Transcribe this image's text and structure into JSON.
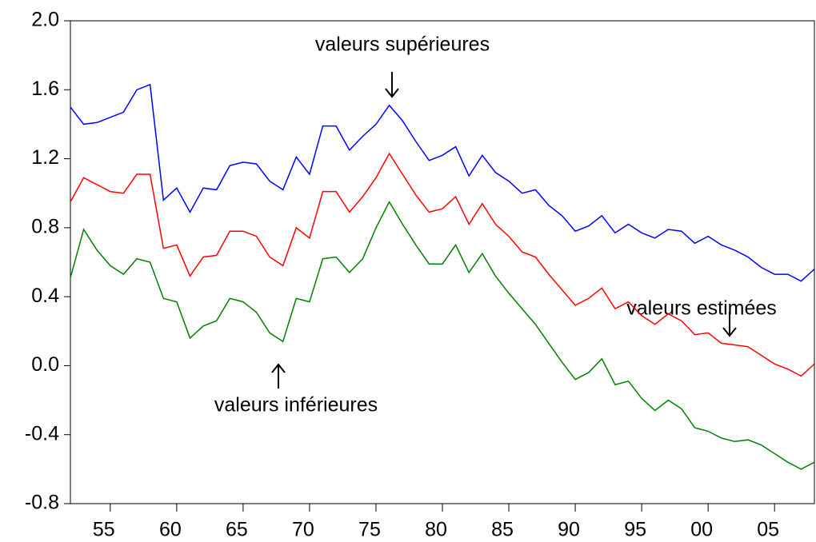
{
  "chart_data": {
    "type": "line",
    "x": [
      1952,
      1953,
      1954,
      1955,
      1956,
      1957,
      1958,
      1959,
      1960,
      1961,
      1962,
      1963,
      1964,
      1965,
      1966,
      1967,
      1968,
      1969,
      1970,
      1971,
      1972,
      1973,
      1974,
      1975,
      1976,
      1977,
      1978,
      1979,
      1980,
      1981,
      1982,
      1983,
      1984,
      1985,
      1986,
      1987,
      1988,
      1989,
      1990,
      1991,
      1992,
      1993,
      1994,
      1995,
      1996,
      1997,
      1998,
      1999,
      2000,
      2001,
      2002,
      2003,
      2004,
      2005,
      2006,
      2007,
      2008
    ],
    "series": [
      {
        "color": "#0000ff",
        "values": [
          1.5,
          1.4,
          1.41,
          1.44,
          1.47,
          1.6,
          1.63,
          0.96,
          1.03,
          0.89,
          1.03,
          1.02,
          1.16,
          1.18,
          1.17,
          1.07,
          1.02,
          1.21,
          1.11,
          1.39,
          1.39,
          1.25,
          1.33,
          1.4,
          1.51,
          1.42,
          1.3,
          1.19,
          1.22,
          1.27,
          1.1,
          1.22,
          1.12,
          1.07,
          1.0,
          1.02,
          0.93,
          0.87,
          0.78,
          0.81,
          0.87,
          0.77,
          0.82,
          0.77,
          0.74,
          0.79,
          0.78,
          0.71,
          0.75,
          0.7,
          0.67,
          0.63,
          0.57,
          0.53,
          0.53,
          0.49,
          0.56
        ]
      },
      {
        "color": "#ff0000",
        "values": [
          0.95,
          1.09,
          1.05,
          1.01,
          1.0,
          1.11,
          1.11,
          0.68,
          0.7,
          0.52,
          0.63,
          0.64,
          0.78,
          0.78,
          0.75,
          0.63,
          0.58,
          0.8,
          0.74,
          1.01,
          1.01,
          0.89,
          0.98,
          1.09,
          1.23,
          1.11,
          0.99,
          0.89,
          0.91,
          0.98,
          0.82,
          0.94,
          0.82,
          0.75,
          0.66,
          0.63,
          0.53,
          0.44,
          0.35,
          0.39,
          0.45,
          0.33,
          0.37,
          0.29,
          0.24,
          0.3,
          0.26,
          0.18,
          0.19,
          0.13,
          0.12,
          0.11,
          0.06,
          0.01,
          -0.02,
          -0.06,
          0.01
        ]
      },
      {
        "color": "#008000",
        "values": [
          0.51,
          0.79,
          0.67,
          0.58,
          0.53,
          0.62,
          0.6,
          0.39,
          0.37,
          0.16,
          0.23,
          0.26,
          0.39,
          0.37,
          0.31,
          0.19,
          0.14,
          0.39,
          0.37,
          0.62,
          0.63,
          0.54,
          0.62,
          0.8,
          0.95,
          0.82,
          0.7,
          0.59,
          0.59,
          0.7,
          0.54,
          0.65,
          0.52,
          0.42,
          0.33,
          0.24,
          0.13,
          0.02,
          -0.08,
          -0.04,
          0.04,
          -0.11,
          -0.09,
          -0.19,
          -0.26,
          -0.2,
          -0.25,
          -0.36,
          -0.38,
          -0.42,
          -0.44,
          -0.43,
          -0.46,
          -0.51,
          -0.56,
          -0.6,
          -0.56
        ]
      }
    ],
    "annotations": [
      "valeurs supérieures",
      "valeurs estimées",
      "valeurs inférieures"
    ],
    "xlim": [
      1952,
      2008
    ],
    "xticks": [
      {
        "value": 1955,
        "label": "55"
      },
      {
        "value": 1960,
        "label": "60"
      },
      {
        "value": 1965,
        "label": "65"
      },
      {
        "value": 1970,
        "label": "70"
      },
      {
        "value": 1975,
        "label": "75"
      },
      {
        "value": 1980,
        "label": "80"
      },
      {
        "value": 1985,
        "label": "85"
      },
      {
        "value": 1990,
        "label": "90"
      },
      {
        "value": 1995,
        "label": "95"
      },
      {
        "value": 2000,
        "label": "00"
      },
      {
        "value": 2005,
        "label": "05"
      }
    ],
    "ylim": [
      -0.8,
      2.0
    ],
    "yticks": [
      {
        "value": -0.8,
        "label": "-0.8"
      },
      {
        "value": -0.4,
        "label": "-0.4"
      },
      {
        "value": 0,
        "label": "0.0"
      },
      {
        "value": 0.4,
        "label": "0.4"
      },
      {
        "value": 0.8,
        "label": "0.8"
      },
      {
        "value": 1.2,
        "label": "1.2"
      },
      {
        "value": 1.6,
        "label": "1.6"
      },
      {
        "value": 2.0,
        "label": "2.0"
      }
    ],
    "grid": false
  }
}
